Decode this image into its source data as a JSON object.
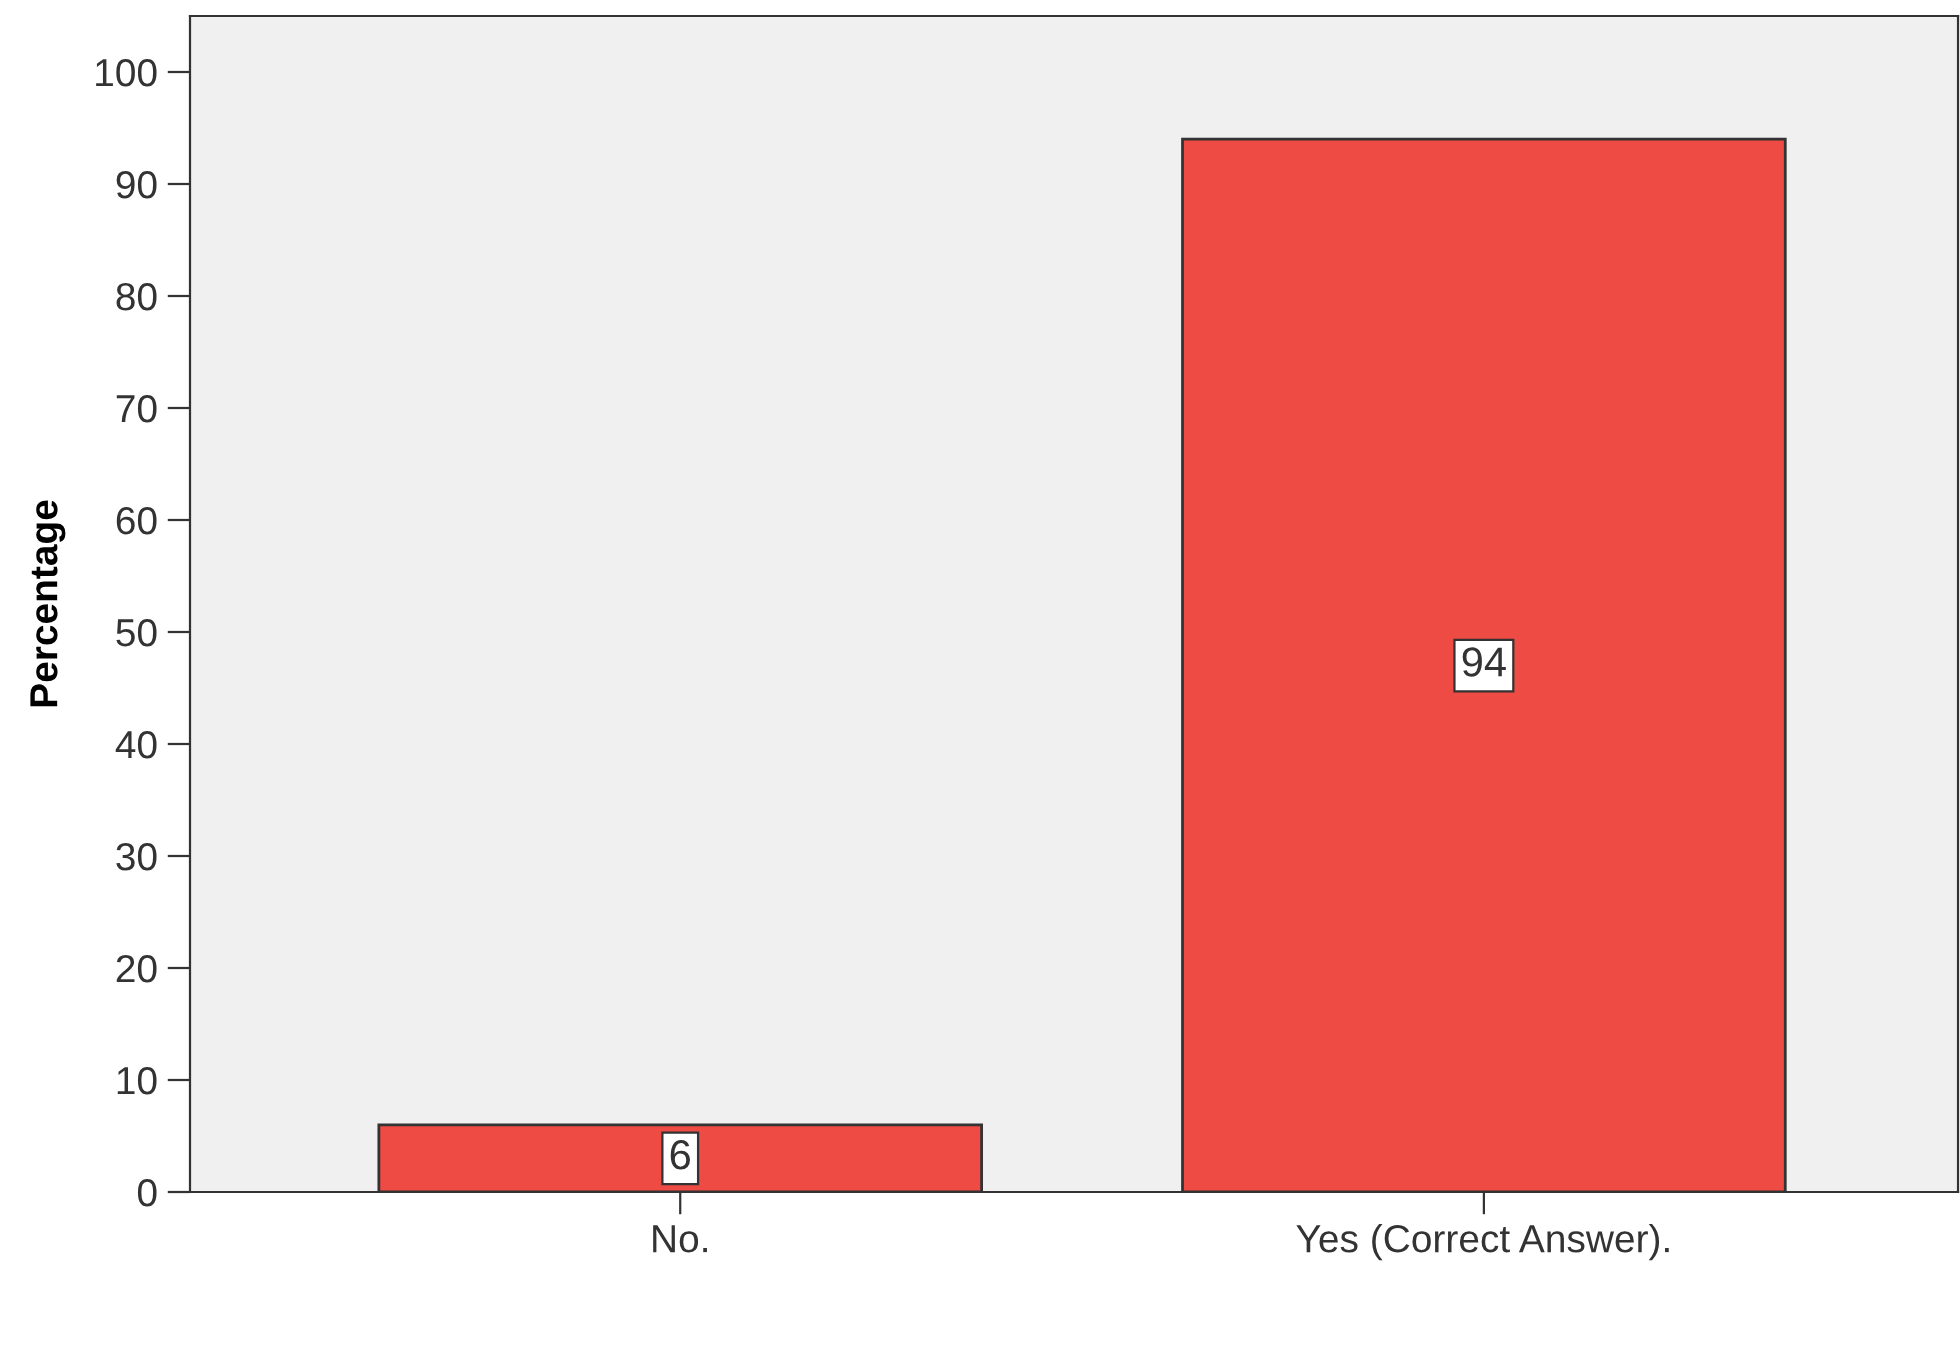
{
  "chart_data": {
    "type": "bar",
    "ylabel": "Percentage",
    "categories": [
      "No.",
      "Yes (Correct Answer)."
    ],
    "values": [
      6,
      94
    ],
    "color": "#ef4b45",
    "ylim": [
      0,
      105
    ],
    "yticks": [
      0,
      10,
      20,
      30,
      40,
      50,
      60,
      70,
      80,
      90,
      100
    ],
    "data_labels": true,
    "grid": false,
    "legend": false
  }
}
